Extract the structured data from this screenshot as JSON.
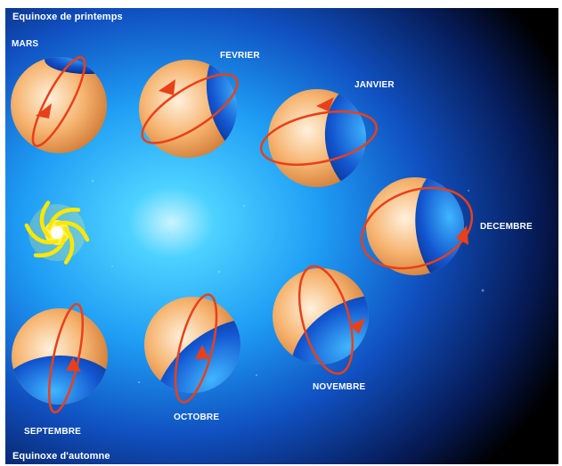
{
  "captions": {
    "top": "Equinoxe de printemps",
    "bottom": "Equinoxe d'automne"
  },
  "months": {
    "mars": "MARS",
    "fevrier": "FEVRIER",
    "janvier": "JANVIER",
    "decembre": "DECEMBRE",
    "novembre": "NOVEMBRE",
    "octobre": "OCTOBRE",
    "septembre": "SEPTEMBRE"
  },
  "colors": {
    "background": "#000000",
    "glow": "#1fa0ff",
    "sun": "#ffe800",
    "earth_day": "#f4a860",
    "earth_night": "#0a3fb8",
    "orbit_arrow": "#e8401a",
    "label": "#ffffff"
  },
  "icons": {
    "sun": "spiral-sun-icon",
    "earth": "earth-globe-icon",
    "rotation": "rotation-arrow-icon"
  }
}
